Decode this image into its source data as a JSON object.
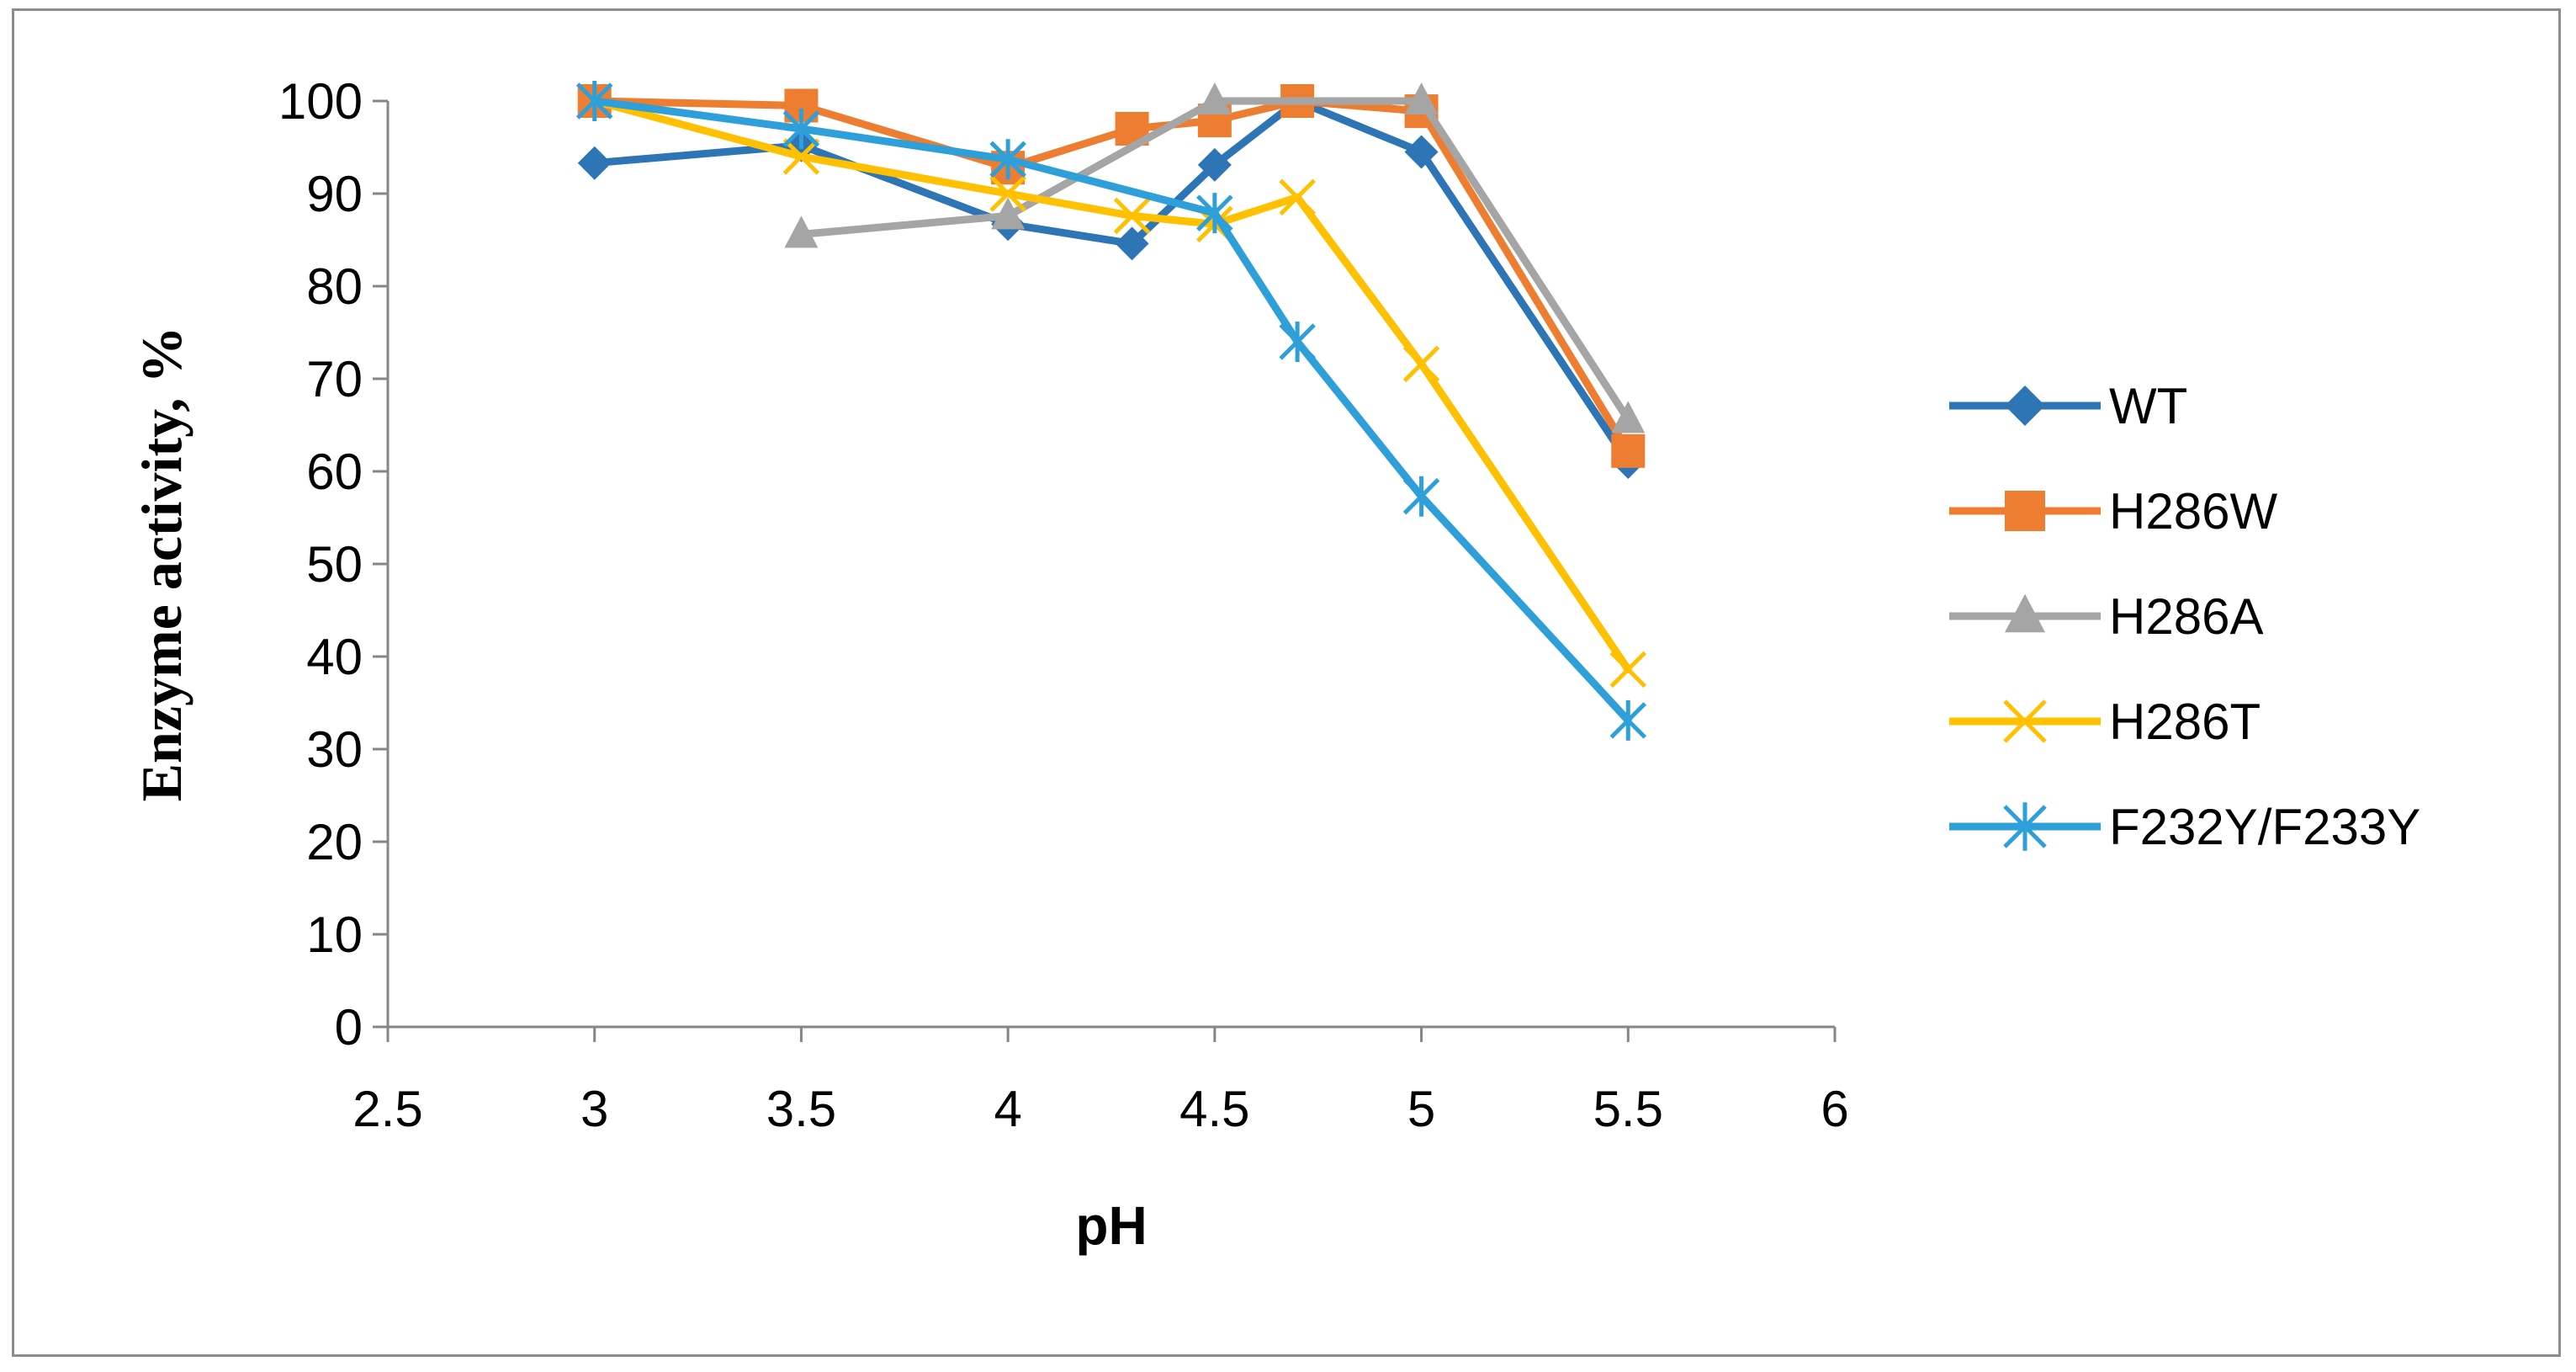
{
  "chart_data": {
    "type": "line",
    "title": "",
    "xlabel": "pH",
    "ylabel": "Enzyme activity, %",
    "xlim": [
      2.5,
      6
    ],
    "ylim": [
      0,
      100
    ],
    "x_ticks": [
      "2.5",
      "3",
      "3.5",
      "4",
      "4.5",
      "5",
      "5.5",
      "6"
    ],
    "y_ticks": [
      "0",
      "10",
      "20",
      "30",
      "40",
      "50",
      "60",
      "70",
      "80",
      "90",
      "100"
    ],
    "grid": false,
    "legend_position": "right",
    "series": [
      {
        "name": "WT",
        "color": "#2e75b6",
        "marker": "diamond",
        "x": [
          3,
          3.5,
          4,
          4.3,
          4.5,
          4.7,
          5,
          5.5
        ],
        "y": [
          93.3,
          95.2,
          86.7,
          84.6,
          93.1,
          100,
          94.5,
          61
        ]
      },
      {
        "name": "H286W",
        "color": "#ed7d31",
        "marker": "square",
        "x": [
          3,
          3.5,
          4,
          4.3,
          4.5,
          4.7,
          5,
          5.5
        ],
        "y": [
          100,
          99.5,
          92.8,
          97,
          97.9,
          100,
          98.9,
          62.2
        ]
      },
      {
        "name": "H286A",
        "color": "#a5a5a5",
        "marker": "triangle",
        "x": [
          3.5,
          4,
          4.5,
          5,
          5.5
        ],
        "y": [
          85.6,
          87.6,
          100,
          100,
          65.6
        ]
      },
      {
        "name": "H286T",
        "color": "#ffc000",
        "marker": "x",
        "x": [
          3,
          3.5,
          4,
          4.3,
          4.5,
          4.7,
          5,
          5.5
        ],
        "y": [
          100,
          94,
          90,
          87.6,
          86.7,
          89.6,
          71.6,
          38.6
        ]
      },
      {
        "name": "F232Y/F233Y",
        "color": "#2e9fd9",
        "marker": "star",
        "x": [
          3,
          3.5,
          4,
          4.5,
          4.7,
          5,
          5.5
        ],
        "y": [
          100,
          97,
          93.7,
          87.9,
          74,
          57.3,
          33.1
        ]
      }
    ]
  }
}
